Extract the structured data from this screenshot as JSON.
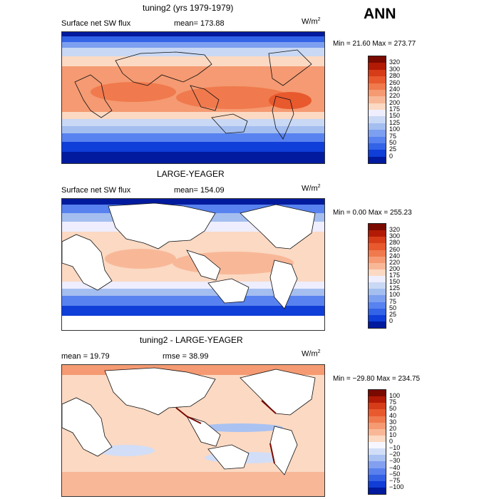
{
  "season": "ANN",
  "units": "W/m",
  "units_sup": "2",
  "panels": [
    {
      "title": "tuning2 (yrs 1979-1979)",
      "variable": "Surface net SW flux",
      "stat": "mean= 173.88",
      "minmax": "Min =  21.60 Max = 273.77",
      "ticks": [
        "320",
        "300",
        "280",
        "260",
        "240",
        "220",
        "200",
        "175",
        "150",
        "125",
        "100",
        "75",
        "50",
        "25",
        "0"
      ],
      "palette": [
        "#7a0a00",
        "#b21a05",
        "#d63c17",
        "#e8592e",
        "#f07a4d",
        "#f59a72",
        "#f8b898",
        "#fbd9c3",
        "#eeeeff",
        "#c9d8f4",
        "#a4bef0",
        "#7d9ff0",
        "#5882ef",
        "#3363e6",
        "#0f3ed8",
        "#021a9e"
      ]
    },
    {
      "title": "LARGE-YEAGER",
      "variable": "Surface net SW flux",
      "stat": "mean= 154.09",
      "minmax": "Min =   0.00 Max = 255.23",
      "ticks": [
        "320",
        "300",
        "280",
        "260",
        "240",
        "220",
        "200",
        "175",
        "150",
        "125",
        "100",
        "75",
        "50",
        "25",
        "0"
      ],
      "palette": [
        "#7a0a00",
        "#b21a05",
        "#d63c17",
        "#e8592e",
        "#f07a4d",
        "#f59a72",
        "#f8b898",
        "#fbd9c3",
        "#eeeeff",
        "#c9d8f4",
        "#a4bef0",
        "#7d9ff0",
        "#5882ef",
        "#3363e6",
        "#0f3ed8",
        "#021a9e"
      ]
    },
    {
      "title": "tuning2 - LARGE-YEAGER",
      "stat_mean": "mean =   19.79",
      "stat_rmse": "rmse =   38.99",
      "minmax": "Min = −29.80 Max = 234.75",
      "ticks": [
        "100",
        "75",
        "50",
        "40",
        "30",
        "20",
        "10",
        "0",
        "−10",
        "−20",
        "−30",
        "−40",
        "−50",
        "−75",
        "−100"
      ],
      "palette": [
        "#7a0a00",
        "#b21a05",
        "#d63c17",
        "#e8592e",
        "#f07a4d",
        "#f59a72",
        "#f8b898",
        "#fbd9c3",
        "#f5f6ff",
        "#d2def7",
        "#a9c2f2",
        "#829ff0",
        "#5a80ee",
        "#3561e4",
        "#103ed6",
        "#021a9e"
      ]
    }
  ]
}
